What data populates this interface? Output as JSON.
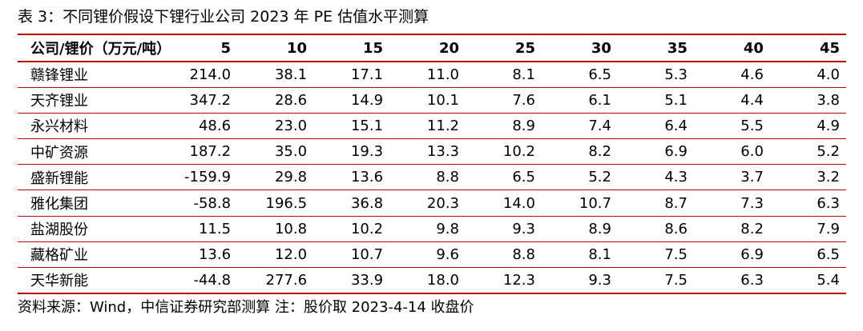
{
  "caption": "表 3：不同锂价假设下锂行业公司 2023 年 PE 估值水平测算",
  "table": {
    "header_label": "公司/锂价（万元/吨）",
    "columns": [
      "5",
      "10",
      "15",
      "20",
      "25",
      "30",
      "35",
      "40",
      "45"
    ],
    "rows": [
      {
        "name": "赣锋锂业",
        "values": [
          "214.0",
          "38.1",
          "17.1",
          "11.0",
          "8.1",
          "6.5",
          "5.3",
          "4.6",
          "4.0"
        ]
      },
      {
        "name": "天齐锂业",
        "values": [
          "347.2",
          "28.6",
          "14.9",
          "10.1",
          "7.6",
          "6.1",
          "5.1",
          "4.4",
          "3.8"
        ]
      },
      {
        "name": "永兴材料",
        "values": [
          "48.6",
          "23.0",
          "15.1",
          "11.2",
          "8.9",
          "7.4",
          "6.4",
          "5.5",
          "4.9"
        ]
      },
      {
        "name": "中矿资源",
        "values": [
          "187.2",
          "35.0",
          "19.3",
          "13.3",
          "10.2",
          "8.2",
          "6.9",
          "6.0",
          "5.2"
        ]
      },
      {
        "name": "盛新锂能",
        "values": [
          "-159.9",
          "29.8",
          "13.6",
          "8.8",
          "6.5",
          "5.2",
          "4.3",
          "3.7",
          "3.2"
        ]
      },
      {
        "name": "雅化集团",
        "values": [
          "-58.8",
          "196.5",
          "36.8",
          "20.3",
          "14.0",
          "10.7",
          "8.7",
          "7.3",
          "6.3"
        ]
      },
      {
        "name": "盐湖股份",
        "values": [
          "11.5",
          "10.8",
          "10.2",
          "9.8",
          "9.3",
          "8.9",
          "8.6",
          "8.2",
          "7.9"
        ]
      },
      {
        "name": "藏格矿业",
        "values": [
          "13.6",
          "12.0",
          "10.7",
          "9.6",
          "8.8",
          "8.1",
          "7.5",
          "6.9",
          "6.5"
        ]
      },
      {
        "name": "天华新能",
        "values": [
          "-44.8",
          "277.6",
          "33.9",
          "18.0",
          "12.3",
          "9.3",
          "7.5",
          "6.3",
          "5.4"
        ]
      }
    ]
  },
  "source_note": "资料来源：Wind，中信证券研究部测算   注：股价取 2023-4-14 收盘价",
  "colors": {
    "rule": "#c00000",
    "text": "#000000",
    "background": "#ffffff"
  }
}
